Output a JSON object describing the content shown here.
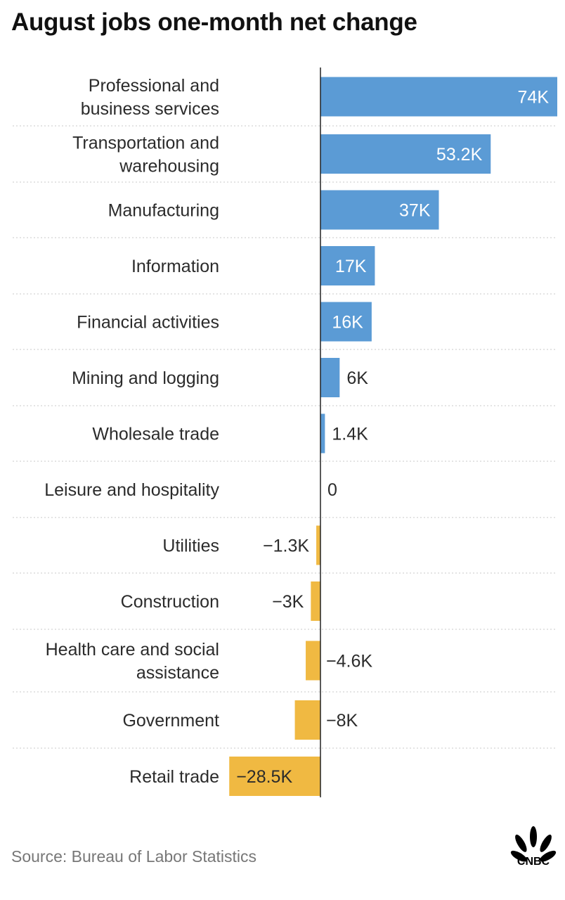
{
  "title": "August jobs one-month net change",
  "source": "Source: Bureau of Labor Statistics",
  "brand": "CNBC",
  "colors": {
    "positive": "#5b9bd5",
    "negative": "#f0b942",
    "axis": "#222222",
    "gridline": "#c8c8c8"
  },
  "chart_data": {
    "type": "bar",
    "orientation": "horizontal",
    "title": "August jobs one-month net change",
    "xlabel": "",
    "ylabel": "",
    "grid": false,
    "categories": [
      [
        "Professional and",
        "business services"
      ],
      [
        "Transportation and",
        "warehousing"
      ],
      [
        "Manufacturing"
      ],
      [
        "Information"
      ],
      [
        "Financial activities"
      ],
      [
        "Mining and logging"
      ],
      [
        "Wholesale trade"
      ],
      [
        "Leisure and hospitality"
      ],
      [
        "Utilities"
      ],
      [
        "Construction"
      ],
      [
        "Health care and social",
        "assistance"
      ],
      [
        "Government"
      ],
      [
        "Retail trade"
      ]
    ],
    "values": [
      74,
      53.2,
      37,
      17,
      16,
      6,
      1.4,
      0,
      -1.3,
      -3,
      -4.6,
      -8,
      -28.5
    ],
    "value_labels": [
      "74K",
      "53.2K",
      "37K",
      "17K",
      "16K",
      "6K",
      "1.4K",
      "0",
      "−1.3K",
      "−3K",
      "−4.6K",
      "−8K",
      "−28.5K"
    ],
    "unit": "K"
  }
}
